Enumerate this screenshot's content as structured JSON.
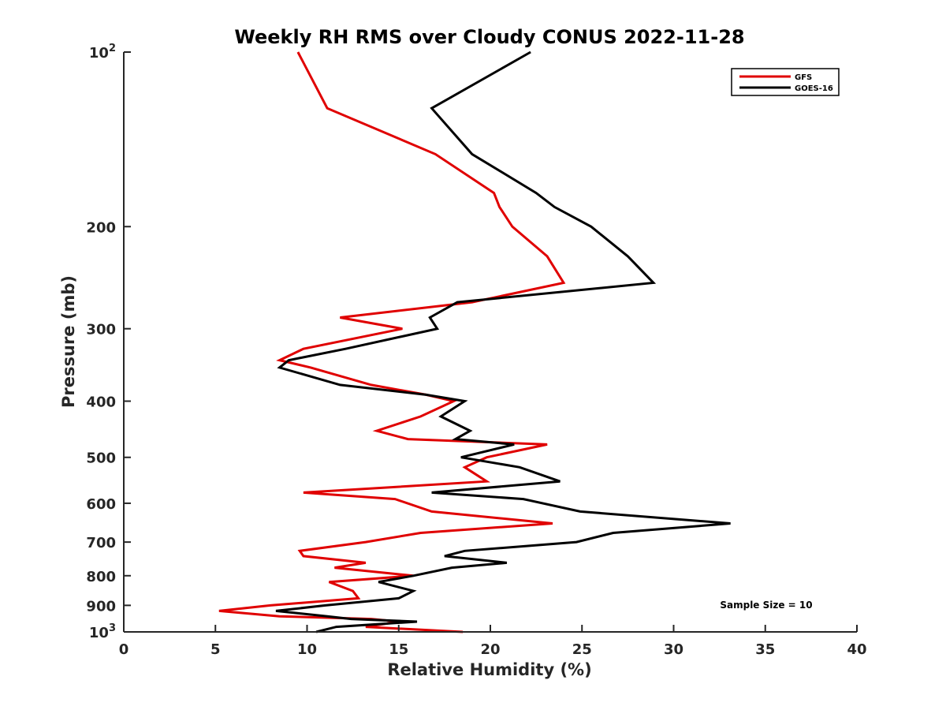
{
  "chart_data": {
    "type": "line",
    "title": "Weekly RH RMS over Cloudy CONUS 2022-11-28",
    "xlabel": "Relative Humidity (%)",
    "ylabel": "Pressure (mb)",
    "xlim": [
      0,
      40
    ],
    "ylim": [
      100,
      1000
    ],
    "y_scale": "log",
    "y_reversed": true,
    "grid": false,
    "legend_position": "top-right",
    "x_ticks": [
      "0",
      "5",
      "10",
      "15",
      "20",
      "25",
      "30",
      "35",
      "40"
    ],
    "y_ticks": [
      {
        "value": 100,
        "label": "10",
        "sup": "2"
      },
      {
        "value": 200,
        "label": "200",
        "sup": ""
      },
      {
        "value": 300,
        "label": "300",
        "sup": ""
      },
      {
        "value": 400,
        "label": "400",
        "sup": ""
      },
      {
        "value": 500,
        "label": "500",
        "sup": ""
      },
      {
        "value": 600,
        "label": "600",
        "sup": ""
      },
      {
        "value": 700,
        "label": "700",
        "sup": ""
      },
      {
        "value": 800,
        "label": "800",
        "sup": ""
      },
      {
        "value": 900,
        "label": "900",
        "sup": ""
      },
      {
        "value": 1000,
        "label": "10",
        "sup": "3"
      }
    ],
    "annotation": "Sample Size = 10",
    "series": [
      {
        "name": "GFS",
        "color": "#e00000",
        "points": [
          [
            9.5,
            100
          ],
          [
            11.1,
            125
          ],
          [
            17.0,
            150
          ],
          [
            20.2,
            175
          ],
          [
            20.5,
            185
          ],
          [
            21.2,
            200
          ],
          [
            23.1,
            225
          ],
          [
            24.0,
            250
          ],
          [
            19.0,
            270
          ],
          [
            11.8,
            287
          ],
          [
            15.2,
            300
          ],
          [
            9.8,
            325
          ],
          [
            8.5,
            340
          ],
          [
            10.2,
            350
          ],
          [
            13.5,
            375
          ],
          [
            16.5,
            390
          ],
          [
            18.0,
            400
          ],
          [
            16.2,
            425
          ],
          [
            13.8,
            450
          ],
          [
            15.5,
            465
          ],
          [
            23.1,
            475
          ],
          [
            19.8,
            500
          ],
          [
            18.6,
            520
          ],
          [
            19.8,
            550
          ],
          [
            9.8,
            575
          ],
          [
            14.8,
            590
          ],
          [
            16.8,
            620
          ],
          [
            23.4,
            650
          ],
          [
            16.2,
            675
          ],
          [
            13.2,
            700
          ],
          [
            9.6,
            725
          ],
          [
            9.8,
            740
          ],
          [
            13.2,
            760
          ],
          [
            11.5,
            775
          ],
          [
            15.8,
            800
          ],
          [
            11.2,
            820
          ],
          [
            12.5,
            850
          ],
          [
            12.8,
            875
          ],
          [
            8.0,
            900
          ],
          [
            5.2,
            920
          ],
          [
            8.5,
            940
          ],
          [
            13.5,
            950
          ],
          [
            15.0,
            960
          ],
          [
            13.2,
            980
          ],
          [
            18.5,
            1000
          ]
        ]
      },
      {
        "name": "GOES-16",
        "color": "#000000",
        "points": [
          [
            22.2,
            100
          ],
          [
            16.8,
            125
          ],
          [
            19.0,
            150
          ],
          [
            22.5,
            175
          ],
          [
            23.5,
            185
          ],
          [
            25.5,
            200
          ],
          [
            27.5,
            225
          ],
          [
            28.9,
            250
          ],
          [
            18.2,
            270
          ],
          [
            16.7,
            287
          ],
          [
            17.1,
            300
          ],
          [
            12.1,
            325
          ],
          [
            9.0,
            340
          ],
          [
            8.5,
            350
          ],
          [
            11.8,
            375
          ],
          [
            16.5,
            390
          ],
          [
            18.6,
            400
          ],
          [
            17.3,
            425
          ],
          [
            18.9,
            450
          ],
          [
            18.1,
            465
          ],
          [
            21.3,
            475
          ],
          [
            18.4,
            500
          ],
          [
            21.6,
            520
          ],
          [
            23.8,
            550
          ],
          [
            16.8,
            575
          ],
          [
            21.8,
            590
          ],
          [
            24.9,
            620
          ],
          [
            33.1,
            650
          ],
          [
            26.7,
            675
          ],
          [
            24.7,
            700
          ],
          [
            18.6,
            725
          ],
          [
            17.5,
            740
          ],
          [
            20.9,
            760
          ],
          [
            17.9,
            775
          ],
          [
            15.8,
            800
          ],
          [
            13.9,
            820
          ],
          [
            15.8,
            850
          ],
          [
            15.0,
            875
          ],
          [
            11.0,
            900
          ],
          [
            8.3,
            920
          ],
          [
            11.1,
            940
          ],
          [
            12.4,
            950
          ],
          [
            16.0,
            960
          ],
          [
            11.6,
            980
          ],
          [
            10.5,
            1000
          ]
        ]
      }
    ]
  }
}
